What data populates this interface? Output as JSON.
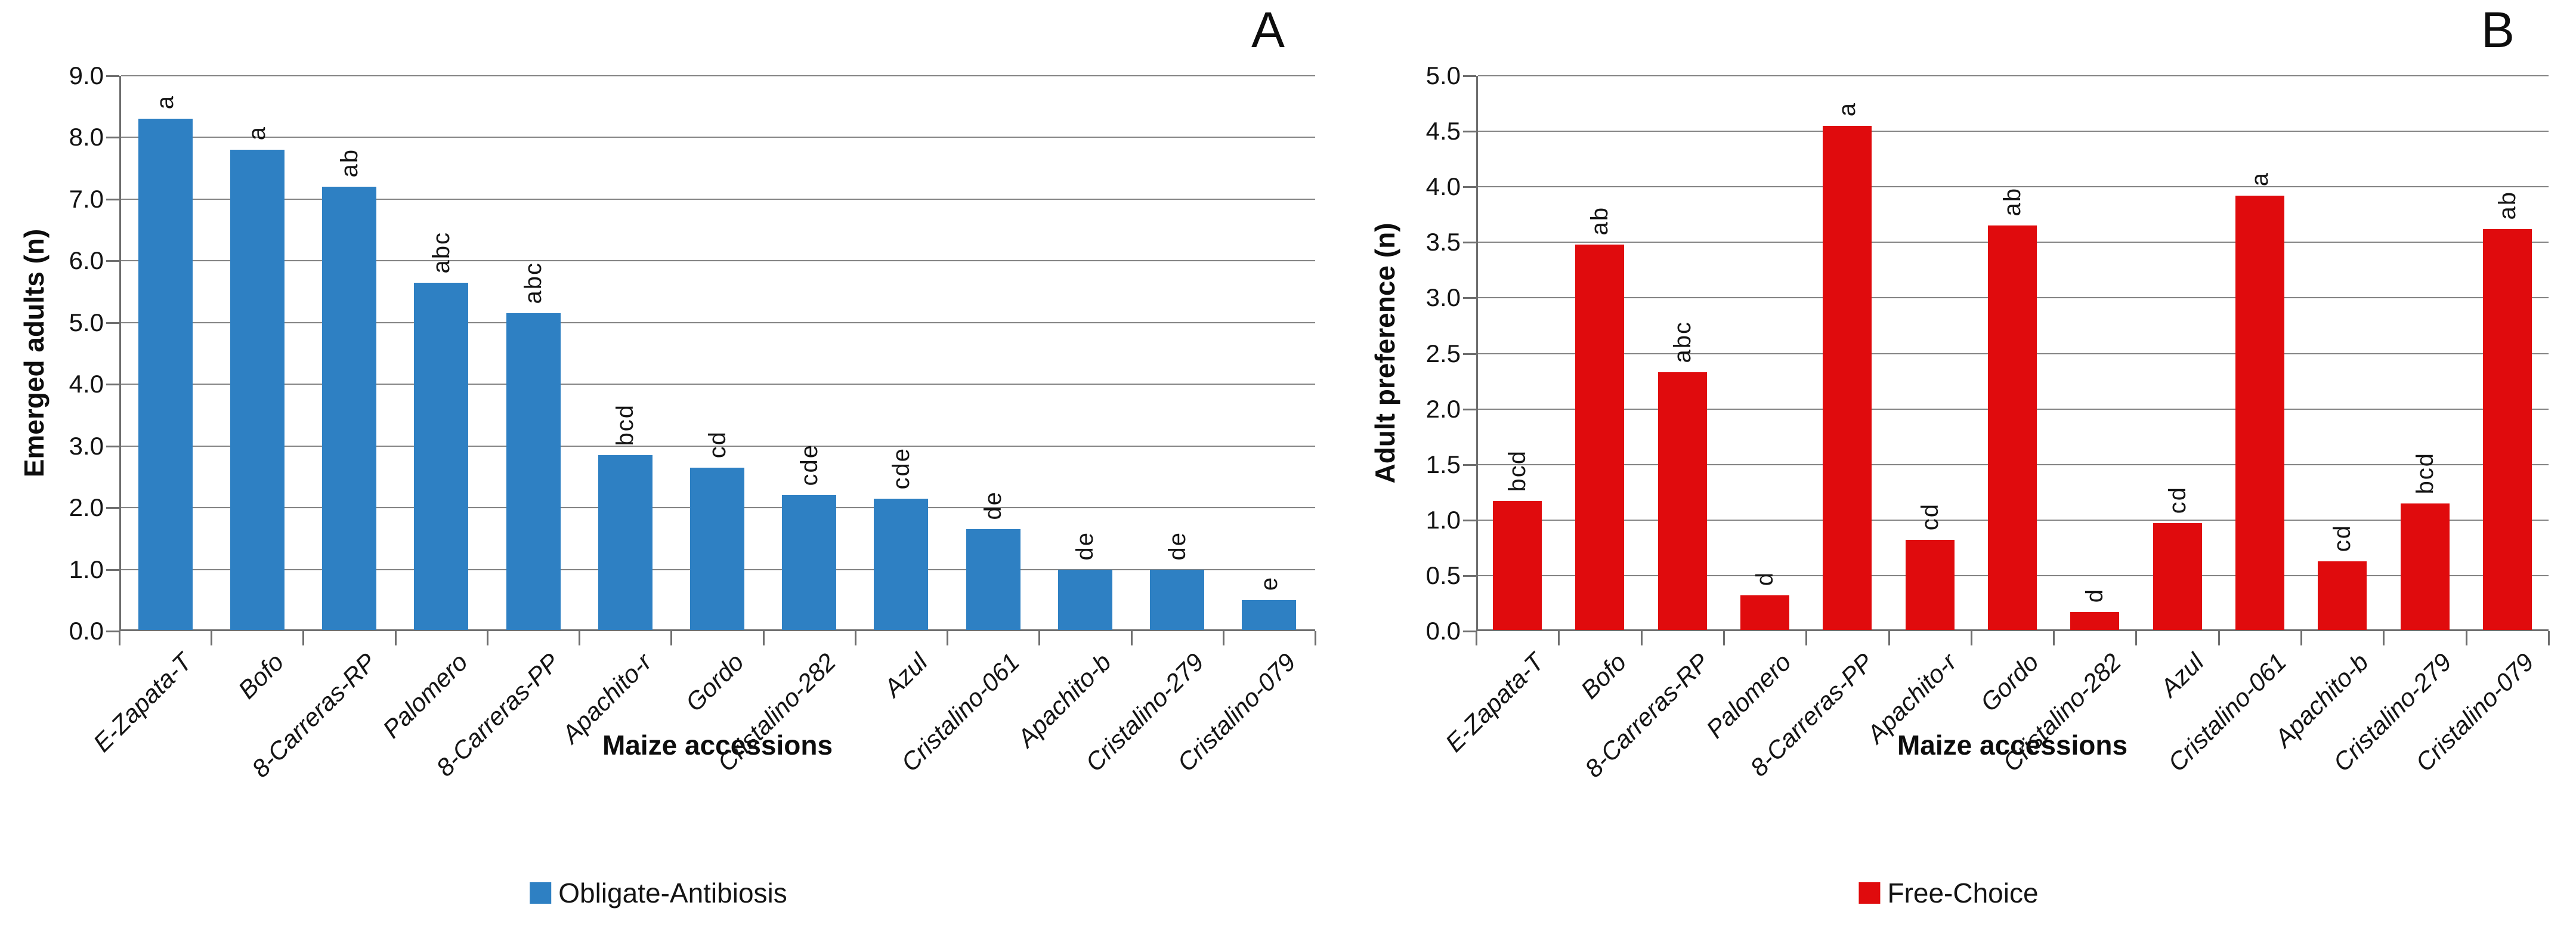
{
  "chart_data": [
    {
      "type": "bar",
      "panel_label": "A",
      "ylabel": "Emerged adults (n)",
      "xlabel": "Maize accessions",
      "legend": "Obligate-Antibiosis",
      "legend_position": "bottom",
      "grid": true,
      "ylim": [
        0.0,
        9.0
      ],
      "y_step": 1.0,
      "y_tick_decimals": 1,
      "bar_color": "#2E80C3",
      "categories": [
        "E-Zapata-T",
        "Bofo",
        "8-Carreras-RP",
        "Palomero",
        "8-Carreras-PP",
        "Apachito-r",
        "Gordo",
        "Cristalino-282",
        "Azul",
        "Cristalino-061",
        "Apachito-b",
        "Cristalino-279",
        "Cristalino-079"
      ],
      "values": [
        8.3,
        7.8,
        7.2,
        5.65,
        5.15,
        2.85,
        2.65,
        2.2,
        2.15,
        1.65,
        1.0,
        1.0,
        0.5
      ],
      "significance_letters": [
        "a",
        "a",
        "ab",
        "abc",
        "abc",
        "bcd",
        "cd",
        "cde",
        "cde",
        "de",
        "de",
        "de",
        "e"
      ]
    },
    {
      "type": "bar",
      "panel_label": "B",
      "ylabel": "Adult preference (n)",
      "xlabel": "Maize accessions",
      "legend": "Free-Choice",
      "legend_position": "bottom",
      "grid": true,
      "ylim": [
        0.0,
        5.0
      ],
      "y_step": 0.5,
      "y_tick_decimals": 1,
      "bar_color": "#E00B0D",
      "categories": [
        "E-Zapata-T",
        "Bofo",
        "8-Carreras-RP",
        "Palomero",
        "8-Carreras-PP",
        "Apachito-r",
        "Gordo",
        "Cristalino-282",
        "Azul",
        "Cristalino-061",
        "Apachito-b",
        "Cristalino-279",
        "Cristalino-079"
      ],
      "values": [
        1.17,
        3.48,
        2.33,
        0.32,
        4.55,
        0.82,
        3.65,
        0.17,
        0.97,
        3.92,
        0.63,
        1.15,
        3.62
      ],
      "significance_letters": [
        "bcd",
        "ab",
        "abc",
        "d",
        "a",
        "cd",
        "ab",
        "d",
        "cd",
        "a",
        "cd",
        "bcd",
        "ab"
      ]
    }
  ]
}
